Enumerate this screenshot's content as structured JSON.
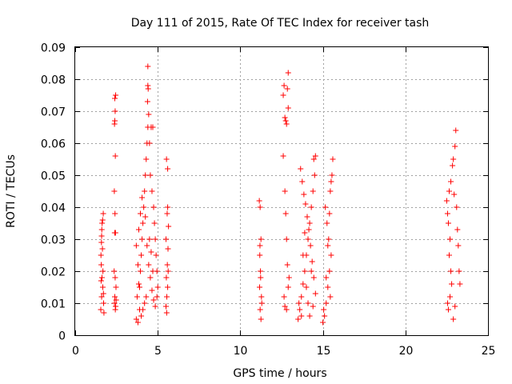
{
  "chart_data": {
    "type": "scatter",
    "title": "Day 111 of 2015, Rate Of TEC Index for receiver tash",
    "xlabel": "GPS time / hours",
    "ylabel": "ROTI / TECUs",
    "xlim": [
      0,
      25
    ],
    "ylim": [
      0,
      0.09
    ],
    "xticks": [
      0,
      5,
      10,
      15,
      20,
      25
    ],
    "xtick_labels": [
      "0",
      "5",
      "10",
      "15",
      "20",
      "25"
    ],
    "yticks": [
      0,
      0.01,
      0.02,
      0.03,
      0.04,
      0.05,
      0.06,
      0.07,
      0.08,
      0.09
    ],
    "ytick_labels": [
      "0",
      "0.01",
      "0.02",
      "0.03",
      "0.04",
      "0.05",
      "0.06",
      "0.07",
      "0.08",
      "0.09"
    ],
    "grid": true,
    "marker": "+",
    "color": "#ff0000",
    "series": [
      {
        "points": [
          [
            1.55,
            0.008
          ],
          [
            1.6,
            0.012
          ],
          [
            1.62,
            0.018
          ],
          [
            1.58,
            0.022
          ],
          [
            1.65,
            0.027
          ],
          [
            1.6,
            0.031
          ],
          [
            1.63,
            0.035
          ],
          [
            1.7,
            0.038
          ],
          [
            1.67,
            0.015
          ],
          [
            1.72,
            0.01
          ],
          [
            1.56,
            0.025
          ],
          [
            1.68,
            0.02
          ],
          [
            1.61,
            0.033
          ],
          [
            1.74,
            0.007
          ],
          [
            1.59,
            0.029
          ],
          [
            1.66,
            0.036
          ],
          [
            1.71,
            0.013
          ],
          [
            1.57,
            0.017
          ],
          [
            2.4,
            0.074
          ],
          [
            2.45,
            0.075
          ],
          [
            2.42,
            0.07
          ],
          [
            2.38,
            0.066
          ],
          [
            2.4,
            0.067
          ],
          [
            2.43,
            0.056
          ],
          [
            2.37,
            0.045
          ],
          [
            2.41,
            0.038
          ],
          [
            2.44,
            0.032
          ],
          [
            2.39,
            0.032
          ],
          [
            2.36,
            0.02
          ],
          [
            2.42,
            0.018
          ],
          [
            2.47,
            0.015
          ],
          [
            2.4,
            0.012
          ],
          [
            2.38,
            0.01
          ],
          [
            2.45,
            0.009
          ],
          [
            2.43,
            0.008
          ],
          [
            2.48,
            0.011
          ],
          [
            3.7,
            0.005
          ],
          [
            3.8,
            0.004
          ],
          [
            3.9,
            0.008
          ],
          [
            3.75,
            0.012
          ],
          [
            3.85,
            0.016
          ],
          [
            3.95,
            0.02
          ],
          [
            4.0,
            0.025
          ],
          [
            4.05,
            0.03
          ],
          [
            4.1,
            0.035
          ],
          [
            4.15,
            0.04
          ],
          [
            4.2,
            0.045
          ],
          [
            4.25,
            0.05
          ],
          [
            4.3,
            0.055
          ],
          [
            4.35,
            0.06
          ],
          [
            4.4,
            0.065
          ],
          [
            4.45,
            0.069
          ],
          [
            4.38,
            0.073
          ],
          [
            4.42,
            0.077
          ],
          [
            4.4,
            0.078
          ],
          [
            4.4,
            0.084
          ],
          [
            4.5,
            0.06
          ],
          [
            4.6,
            0.065
          ],
          [
            4.7,
            0.065
          ],
          [
            4.55,
            0.05
          ],
          [
            4.65,
            0.045
          ],
          [
            4.75,
            0.04
          ],
          [
            4.8,
            0.035
          ],
          [
            4.85,
            0.03
          ],
          [
            4.9,
            0.025
          ],
          [
            4.95,
            0.02
          ],
          [
            5.0,
            0.015
          ],
          [
            4.3,
            0.012
          ],
          [
            4.2,
            0.01
          ],
          [
            4.1,
            0.008
          ],
          [
            4.0,
            0.006
          ],
          [
            3.9,
            0.015
          ],
          [
            3.8,
            0.022
          ],
          [
            3.7,
            0.028
          ],
          [
            3.85,
            0.033
          ],
          [
            3.95,
            0.038
          ],
          [
            4.05,
            0.043
          ],
          [
            4.25,
            0.037
          ],
          [
            4.35,
            0.028
          ],
          [
            4.45,
            0.022
          ],
          [
            4.55,
            0.018
          ],
          [
            4.65,
            0.014
          ],
          [
            4.75,
            0.011
          ],
          [
            4.85,
            0.009
          ],
          [
            4.95,
            0.012
          ],
          [
            4.5,
            0.03
          ],
          [
            4.6,
            0.026
          ],
          [
            4.7,
            0.02
          ],
          [
            5.5,
            0.009
          ],
          [
            5.55,
            0.012
          ],
          [
            5.6,
            0.015
          ],
          [
            5.52,
            0.018
          ],
          [
            5.58,
            0.022
          ],
          [
            5.62,
            0.027
          ],
          [
            5.5,
            0.03
          ],
          [
            5.65,
            0.034
          ],
          [
            5.57,
            0.038
          ],
          [
            5.6,
            0.04
          ],
          [
            5.53,
            0.055
          ],
          [
            5.6,
            0.052
          ],
          [
            5.54,
            0.007
          ],
          [
            5.63,
            0.02
          ],
          [
            11.15,
            0.042
          ],
          [
            11.2,
            0.04
          ],
          [
            11.25,
            0.03
          ],
          [
            11.18,
            0.025
          ],
          [
            11.22,
            0.02
          ],
          [
            11.17,
            0.015
          ],
          [
            11.28,
            0.012
          ],
          [
            11.2,
            0.008
          ],
          [
            11.25,
            0.005
          ],
          [
            11.3,
            0.01
          ],
          [
            11.23,
            0.018
          ],
          [
            11.19,
            0.028
          ],
          [
            12.6,
            0.075
          ],
          [
            12.65,
            0.078
          ],
          [
            12.7,
            0.068
          ],
          [
            12.75,
            0.067
          ],
          [
            12.8,
            0.066
          ],
          [
            12.9,
            0.071
          ],
          [
            12.85,
            0.077
          ],
          [
            12.9,
            0.082
          ],
          [
            12.6,
            0.056
          ],
          [
            12.7,
            0.045
          ],
          [
            12.75,
            0.038
          ],
          [
            12.8,
            0.03
          ],
          [
            12.85,
            0.022
          ],
          [
            12.9,
            0.015
          ],
          [
            12.65,
            0.012
          ],
          [
            12.7,
            0.009
          ],
          [
            12.8,
            0.008
          ],
          [
            12.95,
            0.018
          ],
          [
            13.5,
            0.005
          ],
          [
            13.6,
            0.008
          ],
          [
            13.7,
            0.012
          ],
          [
            13.8,
            0.016
          ],
          [
            13.9,
            0.02
          ],
          [
            14.0,
            0.025
          ],
          [
            14.1,
            0.03
          ],
          [
            14.2,
            0.035
          ],
          [
            14.3,
            0.04
          ],
          [
            14.4,
            0.045
          ],
          [
            14.5,
            0.05
          ],
          [
            14.45,
            0.055
          ],
          [
            14.55,
            0.056
          ],
          [
            13.65,
            0.052
          ],
          [
            13.75,
            0.048
          ],
          [
            13.85,
            0.044
          ],
          [
            13.95,
            0.041
          ],
          [
            14.05,
            0.037
          ],
          [
            14.15,
            0.033
          ],
          [
            14.25,
            0.028
          ],
          [
            14.35,
            0.023
          ],
          [
            14.45,
            0.018
          ],
          [
            14.55,
            0.013
          ],
          [
            13.55,
            0.01
          ],
          [
            13.7,
            0.006
          ],
          [
            13.8,
            0.025
          ],
          [
            13.9,
            0.032
          ],
          [
            14.0,
            0.015
          ],
          [
            14.1,
            0.01
          ],
          [
            14.2,
            0.006
          ],
          [
            14.3,
            0.02
          ],
          [
            14.4,
            0.009
          ],
          [
            15.0,
            0.004
          ],
          [
            15.1,
            0.006
          ],
          [
            15.2,
            0.01
          ],
          [
            15.3,
            0.015
          ],
          [
            15.4,
            0.02
          ],
          [
            15.5,
            0.025
          ],
          [
            15.35,
            0.03
          ],
          [
            15.25,
            0.035
          ],
          [
            15.15,
            0.04
          ],
          [
            15.45,
            0.045
          ],
          [
            15.55,
            0.05
          ],
          [
            15.6,
            0.055
          ],
          [
            15.05,
            0.008
          ],
          [
            15.2,
            0.018
          ],
          [
            15.3,
            0.028
          ],
          [
            15.4,
            0.038
          ],
          [
            15.5,
            0.048
          ],
          [
            15.45,
            0.012
          ],
          [
            22.5,
            0.042
          ],
          [
            22.55,
            0.038
          ],
          [
            22.6,
            0.035
          ],
          [
            22.7,
            0.03
          ],
          [
            22.65,
            0.025
          ],
          [
            22.75,
            0.02
          ],
          [
            22.8,
            0.016
          ],
          [
            22.7,
            0.012
          ],
          [
            22.6,
            0.008
          ],
          [
            22.55,
            0.01
          ],
          [
            22.9,
            0.055
          ],
          [
            22.85,
            0.053
          ],
          [
            23.0,
            0.059
          ],
          [
            23.05,
            0.064
          ],
          [
            22.95,
            0.044
          ],
          [
            23.1,
            0.04
          ],
          [
            23.15,
            0.033
          ],
          [
            23.2,
            0.028
          ],
          [
            23.25,
            0.02
          ],
          [
            23.3,
            0.016
          ],
          [
            22.9,
            0.005
          ],
          [
            23.0,
            0.009
          ],
          [
            22.75,
            0.048
          ],
          [
            22.65,
            0.045
          ]
        ]
      }
    ]
  }
}
